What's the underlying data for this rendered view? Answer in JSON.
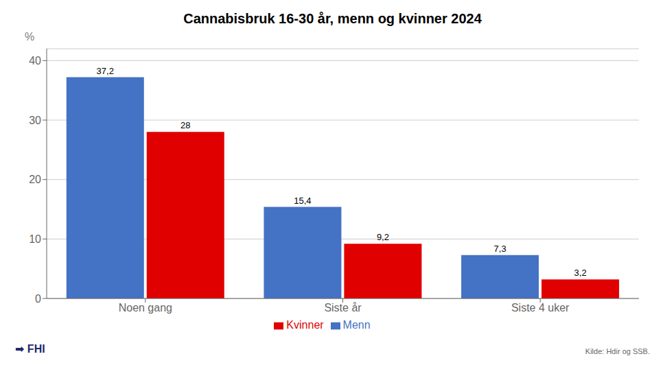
{
  "chart_data": {
    "type": "bar",
    "title": "Cannabisbruk 16-30 år, menn og kvinner 2024",
    "categories": [
      "Noen gang",
      "Siste år",
      "Siste 4 uker"
    ],
    "series": [
      {
        "name": "Menn",
        "color": "#4472C4",
        "values": [
          37.2,
          15.4,
          7.3
        ],
        "value_labels": [
          "37,2",
          "15,4",
          "7,3"
        ]
      },
      {
        "name": "Kvinner",
        "color": "#E00000",
        "values": [
          28.0,
          9.2,
          3.2
        ],
        "value_labels": [
          "28",
          "9,2",
          "3,2"
        ]
      }
    ],
    "ylabel": "% ",
    "ylim": [
      0,
      42
    ],
    "yticks": [
      0,
      10,
      20,
      30,
      40
    ],
    "grid": true,
    "legend": "bottom",
    "data_labels": true,
    "annotations": [
      "Kilde: Hdir og SSB.",
      "➡ FHI"
    ]
  }
}
